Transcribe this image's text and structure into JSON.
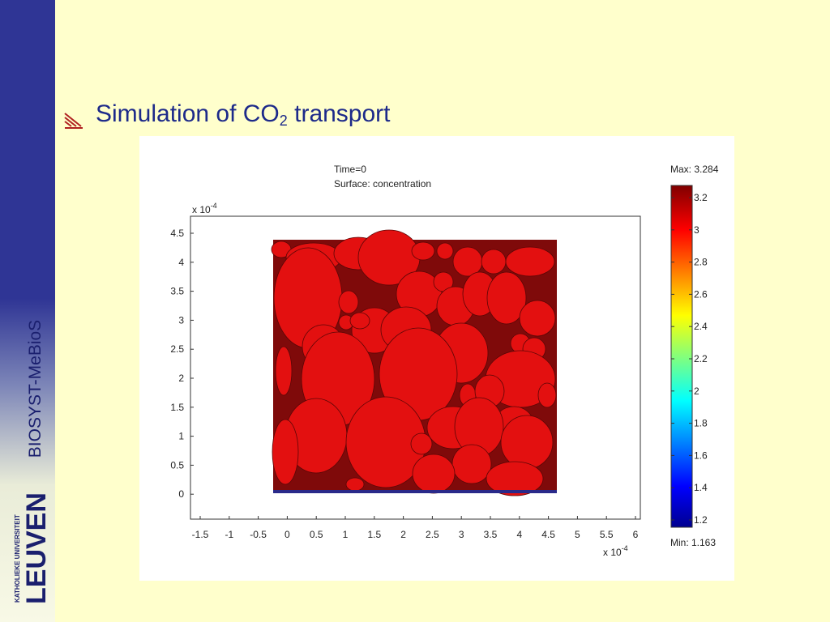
{
  "sidebar": {
    "label": "BIOSYST-MeBioS",
    "logo_small_text": "KATHOLIEKE UNIVERSITEIT",
    "logo_big_text": "LEUVEN"
  },
  "slide": {
    "title_prefix": "Simulation of CO",
    "title_subscript": "2",
    "title_suffix": " transport"
  },
  "plot": {
    "time_label": "Time=0",
    "surface_label": "Surface: concentration",
    "y_exponent_prefix": "x 10",
    "y_exponent": "-4",
    "x_exponent_prefix": "x 10",
    "x_exponent": "-4",
    "x_ticks": [
      "-1.5",
      "-1",
      "-0.5",
      "0",
      "0.5",
      "1",
      "1.5",
      "2",
      "2.5",
      "3",
      "3.5",
      "4",
      "4.5",
      "5",
      "5.5",
      "6"
    ],
    "y_ticks": [
      "4.5",
      "4",
      "3.5",
      "3",
      "2.5",
      "2",
      "1.5",
      "1",
      "0.5",
      "0"
    ],
    "colorbar_max_label": "Max: 3.284",
    "colorbar_min_label": "Min: 1.163",
    "colorbar_ticks": [
      "3.2",
      "3",
      "2.8",
      "2.6",
      "2.4",
      "2.2",
      "2",
      "1.8",
      "1.6",
      "1.4",
      "1.2"
    ]
  },
  "colors": {
    "cell_fill": "#e31010",
    "pore_fill": "#7f0a0a",
    "sidebar_blue": "#2f3595",
    "title_blue": "#1d2a8a",
    "background": "#ffffcc"
  }
}
